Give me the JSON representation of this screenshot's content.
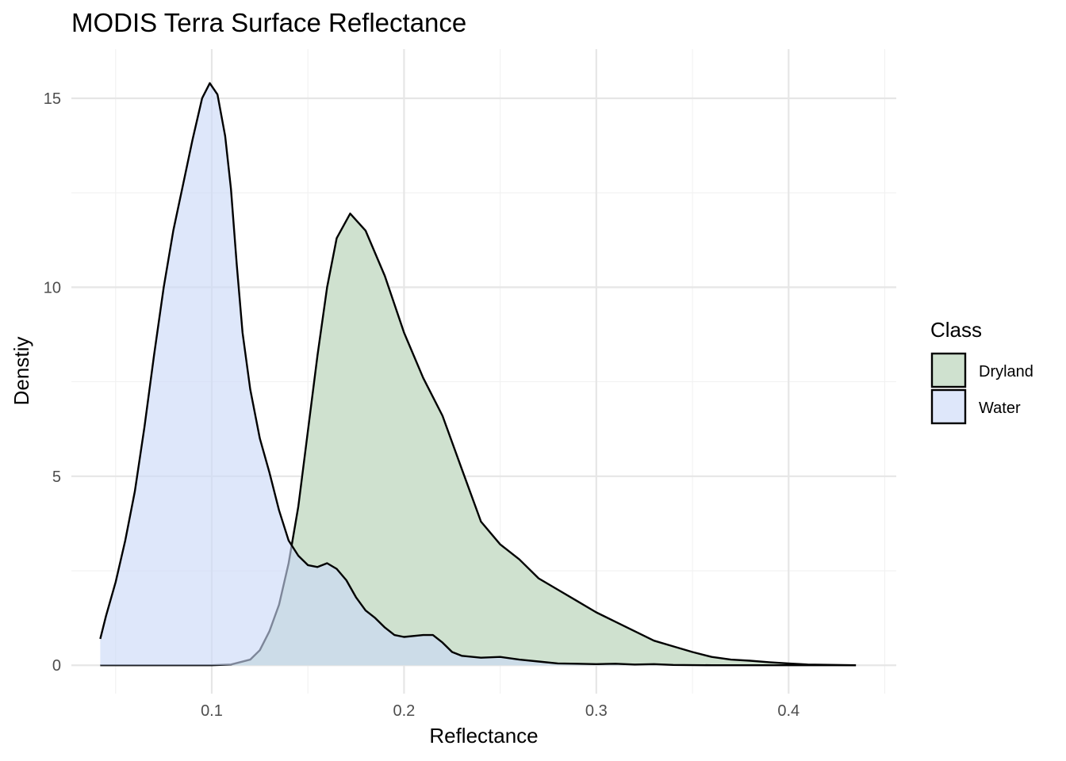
{
  "chart_data": {
    "type": "area",
    "title": "MODIS Terra Surface Reflectance",
    "xlabel": "Reflectance",
    "ylabel": "Denstiy",
    "xlim": [
      0.027,
      0.456
    ],
    "ylim": [
      -0.75,
      16.3
    ],
    "x_ticks": [
      0.1,
      0.2,
      0.3,
      0.4
    ],
    "x_tick_labels": [
      "0.1",
      "0.2",
      "0.3",
      "0.4"
    ],
    "x_minor_ticks": [
      0.05,
      0.15,
      0.25,
      0.35,
      0.45
    ],
    "y_ticks": [
      0,
      5,
      10,
      15
    ],
    "y_tick_labels": [
      "0",
      "5",
      "10",
      "15"
    ],
    "y_minor_ticks": [
      2.5,
      7.5,
      12.5
    ],
    "grid": true,
    "legend": {
      "title": "Class",
      "position": "right"
    },
    "series": [
      {
        "name": "Dryland",
        "color": "#cfe1cf",
        "opacity": 1.0,
        "points": [
          [
            0.042,
            0.0
          ],
          [
            0.1,
            0.0
          ],
          [
            0.11,
            0.02
          ],
          [
            0.12,
            0.15
          ],
          [
            0.125,
            0.4
          ],
          [
            0.13,
            0.9
          ],
          [
            0.135,
            1.6
          ],
          [
            0.14,
            2.7
          ],
          [
            0.145,
            4.2
          ],
          [
            0.15,
            6.2
          ],
          [
            0.155,
            8.2
          ],
          [
            0.16,
            10.0
          ],
          [
            0.165,
            11.3
          ],
          [
            0.172,
            11.95
          ],
          [
            0.18,
            11.5
          ],
          [
            0.19,
            10.3
          ],
          [
            0.2,
            8.8
          ],
          [
            0.21,
            7.6
          ],
          [
            0.22,
            6.6
          ],
          [
            0.23,
            5.2
          ],
          [
            0.24,
            3.8
          ],
          [
            0.25,
            3.2
          ],
          [
            0.26,
            2.8
          ],
          [
            0.27,
            2.3
          ],
          [
            0.28,
            2.0
          ],
          [
            0.29,
            1.7
          ],
          [
            0.3,
            1.4
          ],
          [
            0.31,
            1.15
          ],
          [
            0.32,
            0.9
          ],
          [
            0.33,
            0.65
          ],
          [
            0.34,
            0.5
          ],
          [
            0.35,
            0.35
          ],
          [
            0.36,
            0.22
          ],
          [
            0.37,
            0.15
          ],
          [
            0.38,
            0.12
          ],
          [
            0.39,
            0.08
          ],
          [
            0.4,
            0.05
          ],
          [
            0.41,
            0.02
          ],
          [
            0.435,
            0.0
          ]
        ]
      },
      {
        "name": "Water",
        "color": "#c9d8f7",
        "opacity": 0.62,
        "points": [
          [
            0.042,
            0.7
          ],
          [
            0.045,
            1.3
          ],
          [
            0.05,
            2.2
          ],
          [
            0.055,
            3.3
          ],
          [
            0.06,
            4.6
          ],
          [
            0.065,
            6.3
          ],
          [
            0.07,
            8.2
          ],
          [
            0.075,
            10.0
          ],
          [
            0.08,
            11.5
          ],
          [
            0.085,
            12.7
          ],
          [
            0.09,
            13.9
          ],
          [
            0.095,
            15.0
          ],
          [
            0.099,
            15.4
          ],
          [
            0.103,
            15.1
          ],
          [
            0.107,
            14.0
          ],
          [
            0.11,
            12.6
          ],
          [
            0.113,
            10.6
          ],
          [
            0.116,
            8.8
          ],
          [
            0.12,
            7.3
          ],
          [
            0.125,
            6.0
          ],
          [
            0.13,
            5.1
          ],
          [
            0.135,
            4.1
          ],
          [
            0.14,
            3.3
          ],
          [
            0.145,
            2.9
          ],
          [
            0.15,
            2.65
          ],
          [
            0.155,
            2.6
          ],
          [
            0.16,
            2.7
          ],
          [
            0.165,
            2.55
          ],
          [
            0.17,
            2.25
          ],
          [
            0.175,
            1.8
          ],
          [
            0.18,
            1.45
          ],
          [
            0.185,
            1.25
          ],
          [
            0.19,
            1.0
          ],
          [
            0.195,
            0.8
          ],
          [
            0.2,
            0.75
          ],
          [
            0.21,
            0.8
          ],
          [
            0.215,
            0.8
          ],
          [
            0.22,
            0.6
          ],
          [
            0.225,
            0.35
          ],
          [
            0.23,
            0.25
          ],
          [
            0.24,
            0.2
          ],
          [
            0.25,
            0.22
          ],
          [
            0.26,
            0.15
          ],
          [
            0.27,
            0.1
          ],
          [
            0.28,
            0.05
          ],
          [
            0.29,
            0.04
          ],
          [
            0.3,
            0.03
          ],
          [
            0.31,
            0.04
          ],
          [
            0.32,
            0.02
          ],
          [
            0.33,
            0.03
          ],
          [
            0.34,
            0.01
          ],
          [
            0.36,
            0.0
          ],
          [
            0.435,
            0.0
          ]
        ]
      }
    ]
  }
}
